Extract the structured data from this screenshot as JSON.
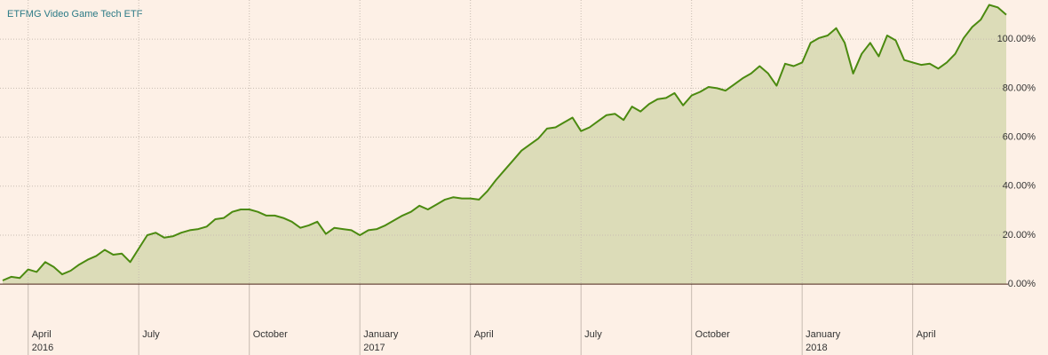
{
  "chart_data": {
    "type": "area",
    "title": "ETFMG Video Game Tech ETF",
    "categories": [
      null,
      null,
      null,
      "April 2016",
      null,
      null,
      null,
      null,
      null,
      null,
      null,
      null,
      null,
      null,
      null,
      null,
      "July",
      null,
      null,
      null,
      null,
      null,
      null,
      null,
      null,
      null,
      null,
      null,
      null,
      "October",
      null,
      null,
      null,
      null,
      null,
      null,
      null,
      null,
      null,
      null,
      null,
      null,
      "January 2017",
      null,
      null,
      null,
      null,
      null,
      null,
      null,
      null,
      null,
      null,
      null,
      null,
      "April",
      null,
      null,
      null,
      null,
      null,
      null,
      null,
      null,
      null,
      null,
      null,
      null,
      "July",
      null,
      null,
      null,
      null,
      null,
      null,
      null,
      null,
      null,
      null,
      null,
      null,
      "October",
      null,
      null,
      null,
      null,
      null,
      null,
      null,
      null,
      null,
      null,
      null,
      null,
      "January 2018",
      null,
      null,
      null,
      null,
      null,
      null,
      null,
      null,
      null,
      null,
      null,
      null,
      "April",
      null,
      null,
      null,
      null,
      null,
      null,
      null,
      null,
      null,
      null,
      null
    ],
    "values": [
      1.5,
      3,
      2.5,
      6,
      5,
      9,
      7,
      4,
      5.5,
      8,
      10,
      11.5,
      14,
      12,
      12.5,
      9,
      14.5,
      20,
      21,
      19,
      19.5,
      21,
      22,
      22.5,
      23.5,
      26.5,
      27,
      29.5,
      30.5,
      30.5,
      29.5,
      28,
      28,
      27,
      25.5,
      23,
      24,
      25.5,
      20.5,
      23,
      22.5,
      22,
      20,
      22,
      22.5,
      24,
      26,
      28,
      29.5,
      32,
      30.5,
      32.5,
      34.5,
      35.5,
      35,
      35,
      34.5,
      38,
      42.5,
      46.5,
      50.5,
      54.5,
      57,
      59.5,
      63.5,
      64,
      66,
      68,
      62.5,
      64,
      66.5,
      69,
      69.5,
      67,
      72.5,
      70.5,
      73.5,
      75.5,
      76,
      78,
      73,
      77,
      78.5,
      80.5,
      80,
      79,
      81.5,
      84,
      86,
      89,
      86,
      81,
      90,
      89,
      90.5,
      98.5,
      100.5,
      101.5,
      104.5,
      98.5,
      86,
      94,
      98.5,
      93,
      101.5,
      99.5,
      91.5,
      90.5,
      89.5,
      90,
      88,
      90.5,
      94,
      100.5,
      105,
      108,
      114,
      113,
      110
    ],
    "color": "#4b8a10",
    "fill_color": "#dcdcb8",
    "ylim": [
      -9,
      116
    ],
    "yticks": [
      {
        "value": 0,
        "label": "0.00%"
      },
      {
        "value": 20,
        "label": "20.00%"
      },
      {
        "value": 40,
        "label": "40.00%"
      },
      {
        "value": 60,
        "label": "60.00%"
      },
      {
        "value": 80,
        "label": "80.00%"
      },
      {
        "value": 100,
        "label": "100.00%"
      }
    ],
    "grid": true
  }
}
